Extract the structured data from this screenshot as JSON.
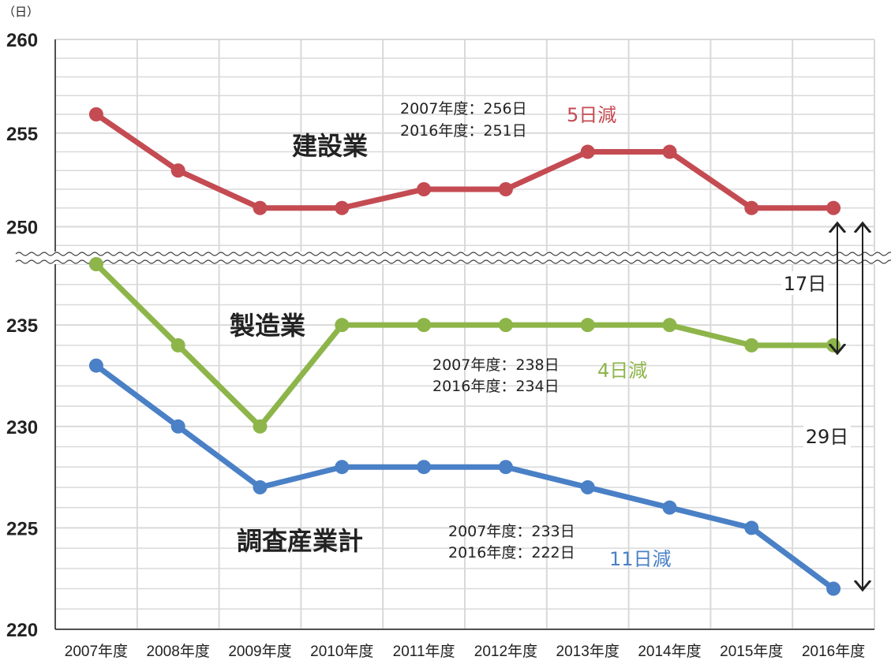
{
  "chart_data": {
    "type": "line",
    "unit": "（日）",
    "x": [
      "2007年度",
      "2008年度",
      "2009年度",
      "2010年度",
      "2011年度",
      "2012年度",
      "2013年度",
      "2014年度",
      "2015年度",
      "2016年度"
    ],
    "ylim_upper": [
      248,
      260
    ],
    "ylim_lower": [
      220,
      238
    ],
    "y_ticks_upper": [
      "250",
      "255",
      "260"
    ],
    "y_ticks_lower": [
      "220",
      "225",
      "230",
      "235"
    ],
    "axis_break": true,
    "grid": true,
    "series": [
      {
        "name": "建設業",
        "color": "#c44b52",
        "values": [
          256,
          253,
          251,
          251,
          252,
          252,
          254,
          254,
          251,
          251
        ],
        "note_line1": "2007年度：256日",
        "note_line2": "2016年度：251日",
        "diff": "5日減"
      },
      {
        "name": "製造業",
        "color": "#8db54a",
        "values": [
          238,
          234,
          230,
          235,
          235,
          235,
          235,
          235,
          234,
          234
        ],
        "note_line1": "2007年度：238日",
        "note_line2": "2016年度：234日",
        "diff": "4日減"
      },
      {
        "name": "調査産業計",
        "color": "#4a80c6",
        "values": [
          233,
          230,
          227,
          228,
          228,
          228,
          227,
          226,
          225,
          222
        ],
        "note_line1": "2007年度：233日",
        "note_line2": "2016年度：222日",
        "diff": "11日減"
      }
    ],
    "annotations": [
      {
        "label": "17日",
        "from_series": "建設業",
        "to_series": "製造業"
      },
      {
        "label": "29日",
        "from_series": "建設業",
        "to_series": "調査産業計"
      }
    ]
  }
}
